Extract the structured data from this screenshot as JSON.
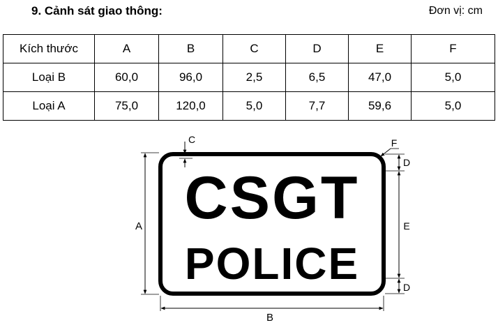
{
  "heading": "9. Cảnh sát giao thông:",
  "unit": "Đơn vị: cm",
  "table": {
    "headers": [
      "Kích thước",
      "A",
      "B",
      "C",
      "D",
      "E",
      "F"
    ],
    "rows": [
      [
        "Loại B",
        "60,0",
        "96,0",
        "2,5",
        "6,5",
        "47,0",
        "5,0"
      ],
      [
        "Loại A",
        "75,0",
        "120,0",
        "5,0",
        "7,7",
        "59,6",
        "5,0"
      ]
    ]
  },
  "sign": {
    "line1": "CSGT",
    "line2": "POLICE"
  },
  "dimension_labels": {
    "A": "A",
    "B": "B",
    "C": "C",
    "D_top": "D",
    "D_bottom": "D",
    "E": "E",
    "F": "F"
  }
}
